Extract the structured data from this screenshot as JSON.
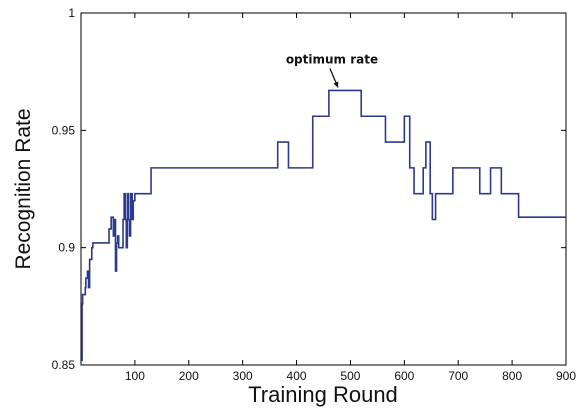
{
  "chart_data": {
    "type": "line",
    "xlabel": "Training Round",
    "ylabel": "Recognition Rate",
    "xlim": [
      0,
      900
    ],
    "ylim": [
      0.85,
      1.0
    ],
    "x_ticks": [
      100,
      200,
      300,
      400,
      500,
      600,
      700,
      800,
      900
    ],
    "y_ticks": [
      0.85,
      0.9,
      0.95,
      1.0
    ],
    "x_tick_labels": [
      "100",
      "200",
      "300",
      "400",
      "500",
      "600",
      "700",
      "800",
      "900"
    ],
    "y_tick_labels": [
      "0.85",
      "0.9",
      "0.95",
      "1"
    ],
    "grid": false,
    "line_color": "#2b3a8c",
    "series": [
      {
        "step": true,
        "x": [
          0,
          2,
          3,
          8,
          9,
          12,
          14,
          16,
          20,
          22,
          52,
          56,
          60,
          62,
          64,
          66,
          68,
          70,
          78,
          80,
          82,
          84,
          86,
          88,
          90,
          92,
          95,
          97,
          100,
          130,
          365,
          385,
          430,
          460,
          520,
          565,
          600,
          610,
          618,
          635,
          640,
          648,
          652,
          658,
          690,
          740,
          760,
          770,
          780,
          812,
          900
        ],
        "y": [
          0.852,
          0.876,
          0.88,
          0.883,
          0.887,
          0.89,
          0.883,
          0.895,
          0.9,
          0.902,
          0.908,
          0.913,
          0.905,
          0.912,
          0.89,
          0.902,
          0.905,
          0.9,
          0.912,
          0.923,
          0.912,
          0.9,
          0.923,
          0.912,
          0.905,
          0.923,
          0.912,
          0.92,
          0.923,
          0.934,
          0.945,
          0.934,
          0.956,
          0.967,
          0.956,
          0.945,
          0.956,
          0.934,
          0.923,
          0.934,
          0.945,
          0.923,
          0.912,
          0.923,
          0.934,
          0.923,
          0.934,
          0.934,
          0.923,
          0.913,
          0.913
        ]
      }
    ],
    "annotations": [
      {
        "text": "optimum rate",
        "x": 488,
        "y": 0.967
      }
    ]
  }
}
